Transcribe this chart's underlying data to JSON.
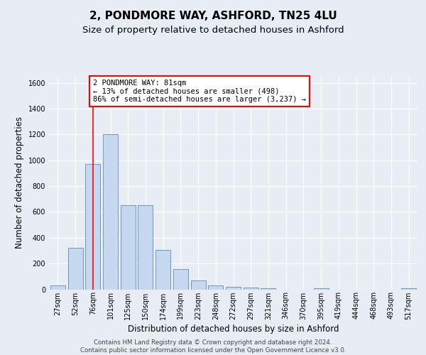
{
  "title_line1": "2, PONDMORE WAY, ASHFORD, TN25 4LU",
  "title_line2": "Size of property relative to detached houses in Ashford",
  "xlabel": "Distribution of detached houses by size in Ashford",
  "ylabel": "Number of detached properties",
  "footer_line1": "Contains HM Land Registry data © Crown copyright and database right 2024.",
  "footer_line2": "Contains public sector information licensed under the Open Government Licence v3.0.",
  "bar_labels": [
    "27sqm",
    "52sqm",
    "76sqm",
    "101sqm",
    "125sqm",
    "150sqm",
    "174sqm",
    "199sqm",
    "223sqm",
    "248sqm",
    "272sqm",
    "297sqm",
    "321sqm",
    "346sqm",
    "370sqm",
    "395sqm",
    "419sqm",
    "444sqm",
    "468sqm",
    "493sqm",
    "517sqm"
  ],
  "bar_values": [
    30,
    320,
    970,
    1200,
    650,
    650,
    305,
    155,
    70,
    30,
    20,
    15,
    10,
    0,
    0,
    10,
    0,
    0,
    0,
    0,
    10
  ],
  "bar_color": "#c5d8ef",
  "bar_edge_color": "#5b8db8",
  "annotation_line1": "2 PONDMORE WAY: 81sqm",
  "annotation_line2": "← 13% of detached houses are smaller (498)",
  "annotation_line3": "86% of semi-detached houses are larger (3,237) →",
  "vline_x": 2.0,
  "ylim_max": 1650,
  "yticks": [
    0,
    200,
    400,
    600,
    800,
    1000,
    1200,
    1400,
    1600
  ],
  "bg_color": "#e8edf5",
  "grid_color": "#ffffff",
  "title1_fontsize": 11,
  "title2_fontsize": 9.5,
  "tick_fontsize": 7,
  "label_fontsize": 8.5,
  "footer_fontsize": 6.2,
  "ann_fontsize": 7.5
}
